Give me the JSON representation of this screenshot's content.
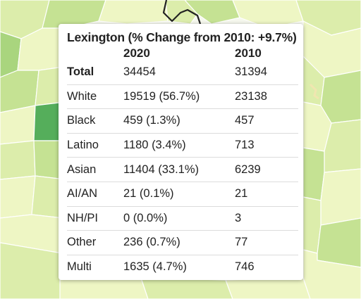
{
  "tooltip": {
    "title": "Lexington (% Change from 2010: +9.7%)",
    "columns": [
      "",
      "2020",
      "2010"
    ],
    "rows": [
      {
        "group": "Total",
        "v2020": "34454",
        "v2010": "31394"
      },
      {
        "group": "White",
        "v2020": "19519 (56.7%)",
        "v2010": "23138"
      },
      {
        "group": "Black",
        "v2020": "459 (1.3%)",
        "v2010": "457"
      },
      {
        "group": "Latino",
        "v2020": "1180 (3.4%)",
        "v2010": "713"
      },
      {
        "group": "Asian",
        "v2020": "11404 (33.1%)",
        "v2010": "6239"
      },
      {
        "group": "AI/AN",
        "v2020": "21 (0.1%)",
        "v2010": "21"
      },
      {
        "group": "NH/PI",
        "v2020": "0 (0.0%)",
        "v2010": "3"
      },
      {
        "group": "Other",
        "v2020": "236 (0.7%)",
        "v2010": "77"
      },
      {
        "group": "Multi",
        "v2020": "1635 (4.7%)",
        "v2010": "746"
      }
    ]
  },
  "map": {
    "colors": {
      "light": "#eef6c4",
      "lightmid": "#dcedab",
      "mid": "#c5e293",
      "midgreen": "#a9d57e",
      "green": "#7cc06a",
      "dark": "#55ae5b",
      "border": "#ffffff",
      "outline": "#222222",
      "water": "#f2f2f2"
    }
  }
}
